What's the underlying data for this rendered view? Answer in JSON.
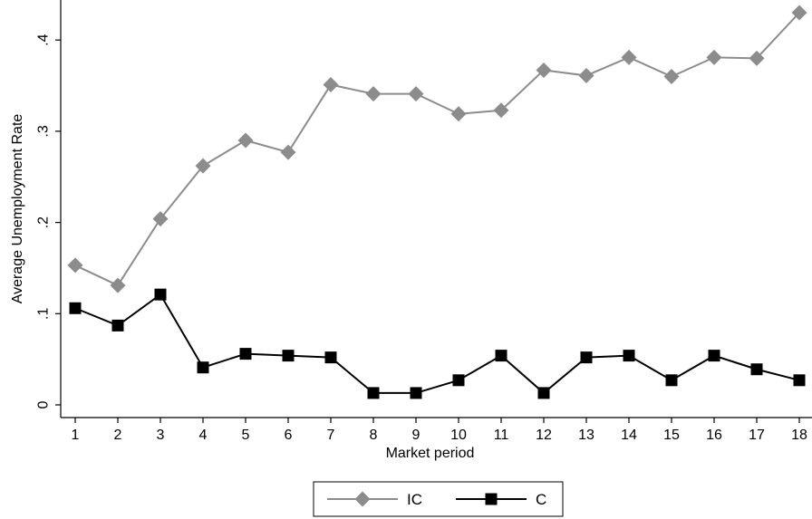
{
  "chart_data": {
    "type": "line",
    "xlabel": "Market period",
    "ylabel": "Average Unemployment Rate",
    "x": [
      1,
      2,
      3,
      4,
      5,
      6,
      7,
      8,
      9,
      10,
      11,
      12,
      13,
      14,
      15,
      16,
      17,
      18
    ],
    "xlim": [
      1,
      18
    ],
    "ylim": [
      0,
      0.43
    ],
    "yticks": [
      0,
      0.1,
      0.2,
      0.3,
      0.4
    ],
    "ytick_labels": [
      "0",
      ".1",
      ".2",
      ".3",
      ".4"
    ],
    "grid": false,
    "legend_position": "bottom",
    "series": [
      {
        "name": "IC",
        "color": "#8c8c8c",
        "marker": "diamond",
        "values": [
          0.153,
          0.131,
          0.204,
          0.262,
          0.29,
          0.277,
          0.351,
          0.341,
          0.341,
          0.319,
          0.323,
          0.367,
          0.361,
          0.381,
          0.36,
          0.381,
          0.38,
          0.43
        ]
      },
      {
        "name": "C",
        "color": "#000000",
        "marker": "square",
        "values": [
          0.106,
          0.087,
          0.121,
          0.041,
          0.056,
          0.054,
          0.052,
          0.013,
          0.013,
          0.027,
          0.054,
          0.013,
          0.052,
          0.054,
          0.027,
          0.054,
          0.039,
          0.027
        ]
      }
    ]
  }
}
